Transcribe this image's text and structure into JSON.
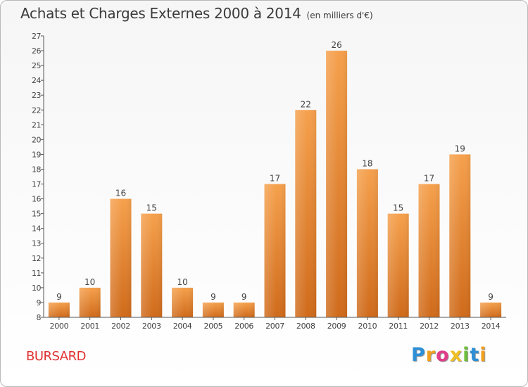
{
  "chart_data": {
    "type": "bar",
    "title": "Achats et Charges Externes 2000 à 2014",
    "subtitle": "(en milliers d'€)",
    "categories": [
      "2000",
      "2001",
      "2002",
      "2003",
      "2004",
      "2005",
      "2006",
      "2007",
      "2008",
      "2009",
      "2010",
      "2011",
      "2012",
      "2013",
      "2014"
    ],
    "values": [
      9,
      10,
      16,
      15,
      10,
      9,
      9,
      17,
      22,
      26,
      18,
      15,
      17,
      19,
      9
    ],
    "ylim": [
      8,
      27
    ],
    "yticks": [
      "8",
      "9",
      "10",
      "11",
      "12",
      "13",
      "14",
      "15",
      "16",
      "17",
      "18",
      "19",
      "20",
      "21",
      "22",
      "23",
      "24",
      "25",
      "26",
      "27"
    ],
    "grid": false,
    "colors": {
      "bar_top": "#f5a04c",
      "bar_bottom": "#cf6a1a",
      "axis": "#555555"
    }
  },
  "footer": {
    "commune": "BURSARD",
    "logo_letters": [
      {
        "ch": "P",
        "color": "#2e8fd6"
      },
      {
        "ch": "r",
        "color": "#f0a020"
      },
      {
        "ch": "o",
        "color": "#e03c8a"
      },
      {
        "ch": "x",
        "color": "#f0c020"
      },
      {
        "ch": "i",
        "color": "#6cbf3a"
      },
      {
        "ch": "t",
        "color": "#2e8fd6"
      },
      {
        "ch": "i",
        "color": "#f0a020"
      }
    ]
  }
}
